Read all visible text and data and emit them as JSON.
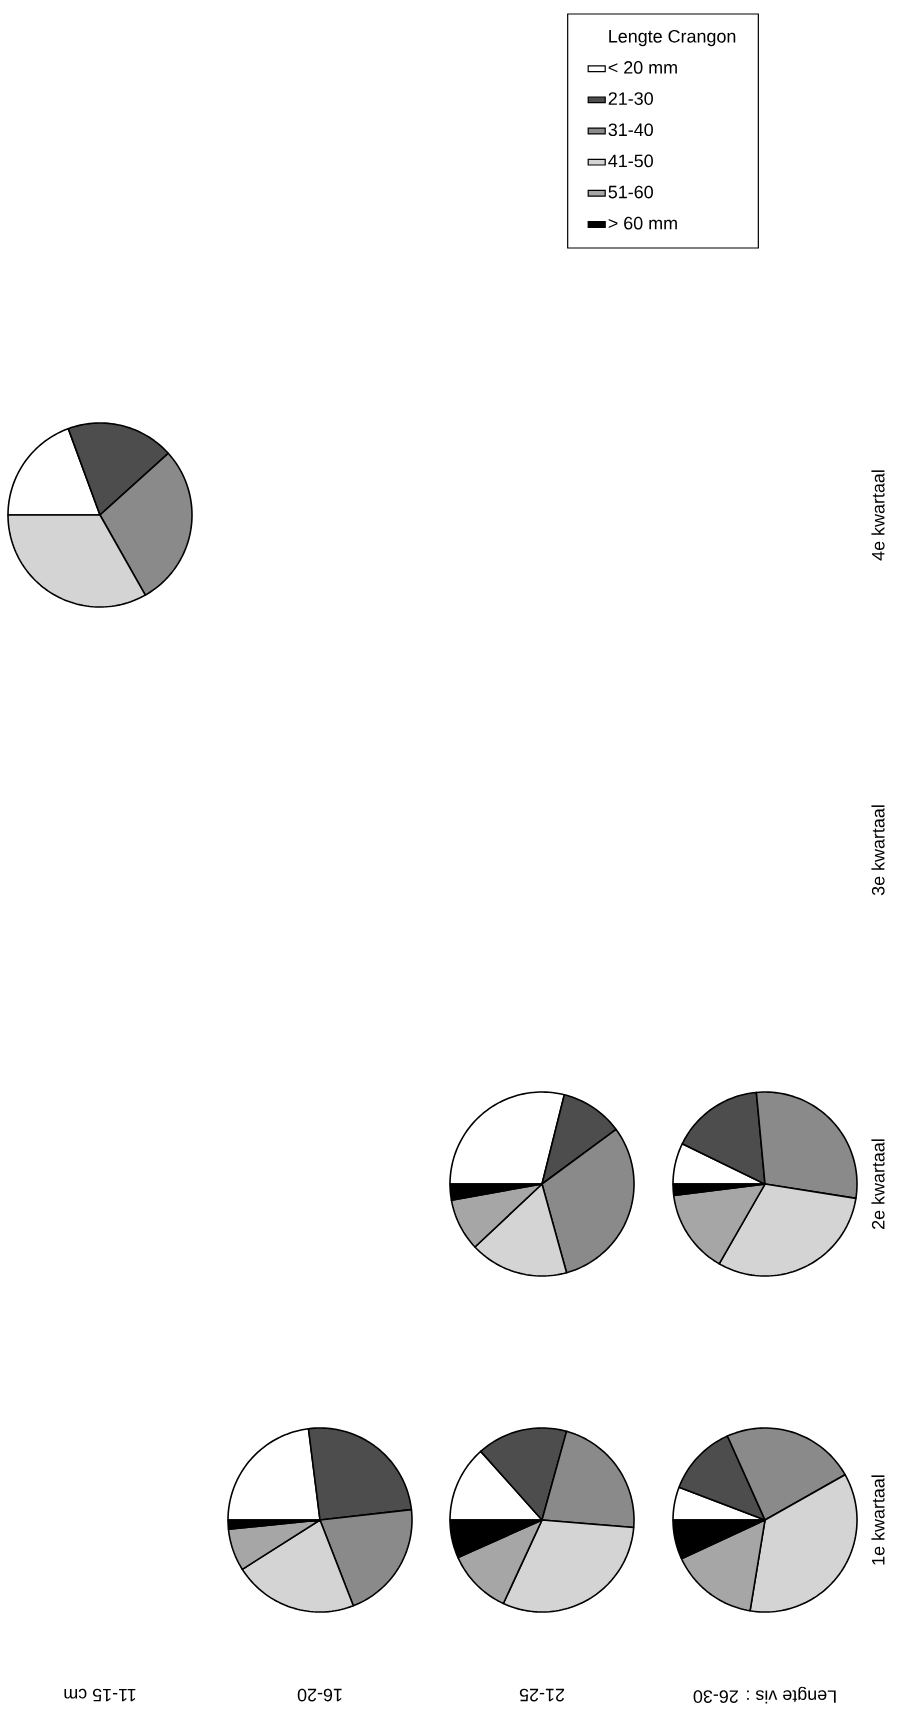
{
  "chart_data": {
    "type": "pie",
    "categories": [
      "< 20 mm",
      "21-30",
      "31-40",
      "41-50",
      "51-60",
      "> 60 mm"
    ],
    "colors": [
      "#ffffff",
      "#4d4d4d",
      "#8a8a8a",
      "#d4d4d4",
      "#a6a6a6",
      "#000000"
    ],
    "legend": "top right",
    "legend_title": "Lengte Crangon",
    "series": [
      {
        "values": [
          19.4,
          18.9,
          28.5,
          33.2,
          0,
          0
        ]
      },
      {
        "values": [
          28.9,
          11,
          30.8,
          17.3,
          9.2,
          2.8
        ]
      },
      {
        "values": [
          7.2,
          16.3,
          29,
          30.8,
          14.7,
          2
        ]
      },
      {
        "values": [
          23,
          25.2,
          20.9,
          21.9,
          7.4,
          1.6
        ]
      },
      {
        "values": [
          13.4,
          15.9,
          22,
          30.6,
          11.4,
          6.7
        ]
      },
      {
        "values": [
          5.8,
          12.5,
          23.5,
          35.8,
          15.5,
          6.9
        ]
      }
    ],
    "annotations": [
      "11-15 cm",
      "16-20",
      "21-25",
      "Lengte vis : 26-30",
      "1e kwartaal",
      "2e kwartaal",
      "3e kwartaal",
      "4e kwartaal"
    ]
  }
}
